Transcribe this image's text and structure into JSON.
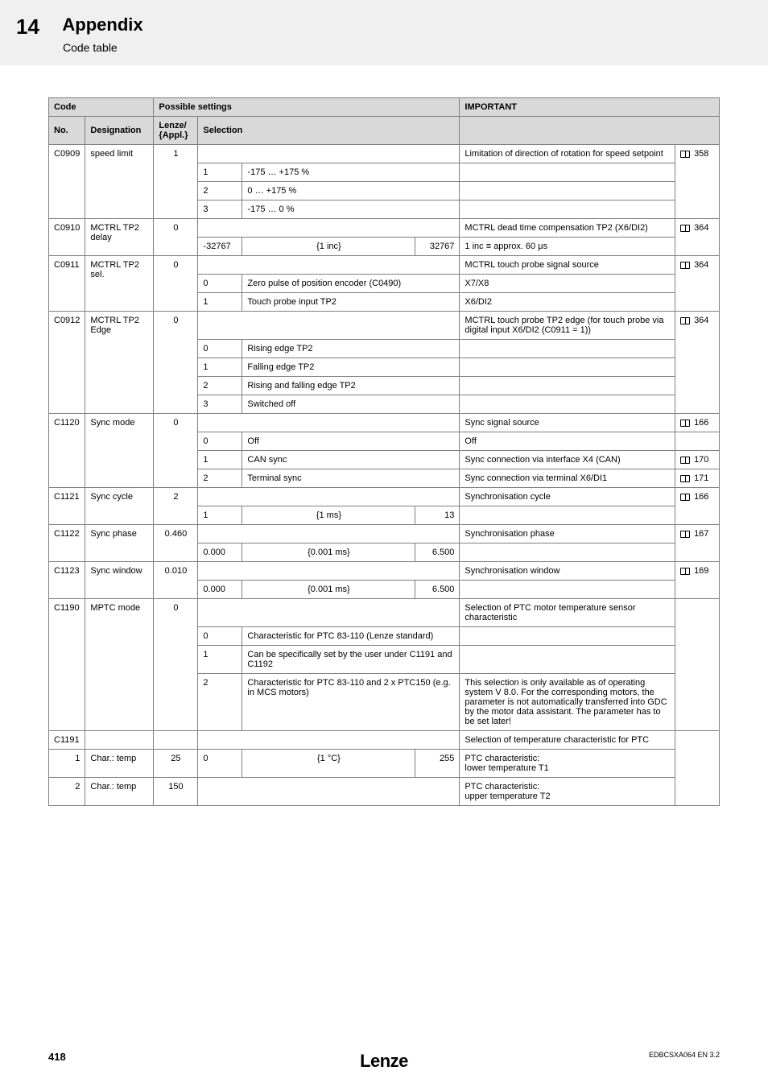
{
  "chapter": {
    "number": "14",
    "title": "Appendix",
    "subtitle": "Code table"
  },
  "header": {
    "code": "Code",
    "possible": "Possible settings",
    "important": "IMPORTANT",
    "no": "No.",
    "designation": "Designation",
    "lenze": "Lenze/\n{Appl.}",
    "selection": "Selection"
  },
  "rows": {
    "c0909": {
      "no": "C0909",
      "desig": "speed limit",
      "lenze": "1",
      "important": "Limitation of direction of rotation for speed setpoint",
      "ref": "358",
      "opts": [
        {
          "k": "1",
          "v": "-175 … +175 %"
        },
        {
          "k": "2",
          "v": "0 … +175 %"
        },
        {
          "k": "3",
          "v": "-175 … 0 %"
        }
      ]
    },
    "c0910": {
      "no": "C0910",
      "desig": "MCTRL TP2 delay",
      "lenze": "0",
      "important": "MCTRL dead time compensation TP2 (X6/DI2)",
      "ref": "364",
      "range": {
        "lo": "-32767",
        "step": "{1 inc}",
        "hi": "32767"
      },
      "note": "1 inc ≡ approx. 60 μs"
    },
    "c0911": {
      "no": "C0911",
      "desig": "MCTRL TP2 sel.",
      "lenze": "0",
      "important": "MCTRL touch probe signal source",
      "ref": "364",
      "opts": [
        {
          "k": "0",
          "v": "Zero pulse of position encoder (C0490)",
          "imp": "X7/X8"
        },
        {
          "k": "1",
          "v": "Touch probe input TP2",
          "imp": "X6/DI2"
        }
      ]
    },
    "c0912": {
      "no": "C0912",
      "desig": "MCTRL TP2 Edge",
      "lenze": "0",
      "important": "MCTRL touch probe TP2 edge (for touch probe via digital input X6/DI2 (C0911 = 1))",
      "ref": "364",
      "opts": [
        {
          "k": "0",
          "v": "Rising edge TP2"
        },
        {
          "k": "1",
          "v": "Falling edge TP2"
        },
        {
          "k": "2",
          "v": "Rising and falling edge TP2"
        },
        {
          "k": "3",
          "v": "Switched off"
        }
      ]
    },
    "c1120": {
      "no": "C1120",
      "desig": "Sync mode",
      "lenze": "0",
      "important": "Sync signal source",
      "ref": "166",
      "opts": [
        {
          "k": "0",
          "v": "Off",
          "imp": "Off"
        },
        {
          "k": "1",
          "v": "CAN sync",
          "imp": "Sync connection via interface X4 (CAN)",
          "ref": "170"
        },
        {
          "k": "2",
          "v": "Terminal sync",
          "imp": "Sync connection via terminal X6/DI1",
          "ref": "171"
        }
      ]
    },
    "c1121": {
      "no": "C1121",
      "desig": "Sync cycle",
      "lenze": "2",
      "important": "Synchronisation cycle",
      "ref": "166",
      "range": {
        "lo": "1",
        "step": "{1 ms}",
        "hi": "13"
      }
    },
    "c1122": {
      "no": "C1122",
      "desig": "Sync phase",
      "lenze": "0.460",
      "important": "Synchronisation phase",
      "ref": "167",
      "range": {
        "lo": "0.000",
        "step": "{0.001 ms}",
        "hi": "6.500"
      }
    },
    "c1123": {
      "no": "C1123",
      "desig": "Sync window",
      "lenze": "0.010",
      "important": "Synchronisation window",
      "ref": "169",
      "range": {
        "lo": "0.000",
        "step": "{0.001 ms}",
        "hi": "6.500"
      }
    },
    "c1190": {
      "no": "C1190",
      "desig": "MPTC mode",
      "lenze": "0",
      "important": "Selection of PTC motor temperature sensor characteristic",
      "opts": [
        {
          "k": "0",
          "v": "Characteristic for PTC 83-110 (Lenze standard)"
        },
        {
          "k": "1",
          "v": "Can be specifically set by the user under C1191 and C1192"
        },
        {
          "k": "2",
          "v": "Characteristic for PTC 83-110 and 2 x PTC150 (e.g. in MCS motors)",
          "imp": "This selection is only available as of operating system V 8.0. For the corresponding motors, the parameter is not automatically transferred into GDC by the motor data assistant. The parameter has to be set later!"
        }
      ]
    },
    "c1191": {
      "no": "C1191",
      "important": "Selection of temperature characteristic for PTC",
      "sub": [
        {
          "k": "1",
          "desig": "Char.: temp",
          "lenze": "25",
          "sel1": "0",
          "step": "{1 °C}",
          "hi": "255",
          "imp": "PTC characteristic:\nlower temperature T1"
        },
        {
          "k": "2",
          "desig": "Char.: temp",
          "lenze": "150",
          "imp": "PTC characteristic:\nupper temperature T2"
        }
      ]
    }
  },
  "footer": {
    "page": "418",
    "logo": "Lenze",
    "doc": "EDBCSXA064 EN 3.2"
  },
  "colors": {
    "header_bg": "#d9d9d9",
    "border": "#808080",
    "page_header_bg": "#f0f0f0"
  }
}
